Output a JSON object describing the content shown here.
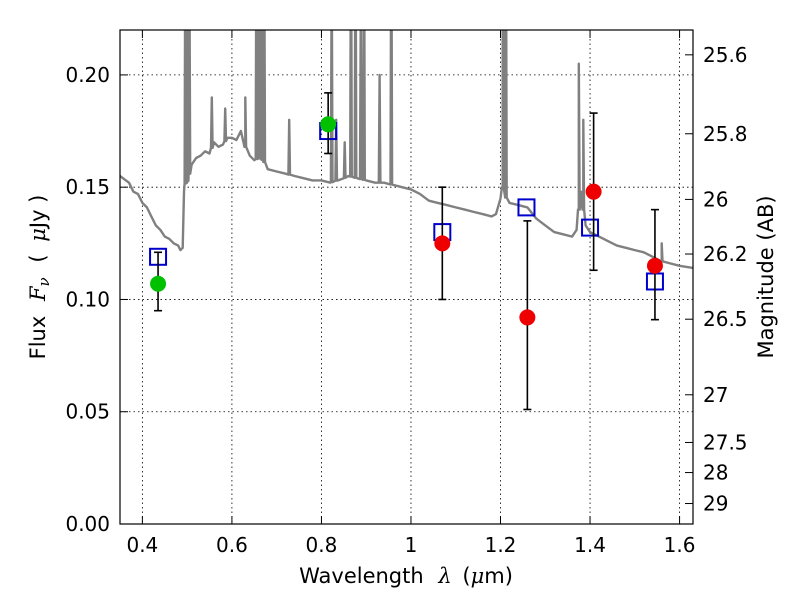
{
  "chart_data": {
    "type": "scatter",
    "xlabel_prefix": "Wavelength",
    "xlabel_symbol": "λ",
    "xlabel_unit_open": "(",
    "xlabel_unit_mu": "μ",
    "xlabel_unit_rest": "m)",
    "ylabel_prefix": "Flux",
    "ylabel_symbol": "F",
    "ylabel_sub": "ν",
    "ylabel_unit_open": "(",
    "ylabel_unit_mu": "μ",
    "ylabel_unit_rest": "Jy )",
    "y2label": "Magnitude (AB)",
    "xlim": [
      0.35,
      1.63
    ],
    "ylim": [
      0.0,
      0.22
    ],
    "grid": true,
    "x_ticks": [
      0.4,
      0.6,
      0.8,
      1.0,
      1.2,
      1.4,
      1.6
    ],
    "x_tick_labels": [
      "0.4",
      "0.6",
      "0.8",
      "1",
      "1.2",
      "1.4",
      "1.6"
    ],
    "y_ticks": [
      0.0,
      0.05,
      0.1,
      0.15,
      0.2
    ],
    "y_tick_labels": [
      "0.00",
      "0.05",
      "0.10",
      "0.15",
      "0.20"
    ],
    "y2_ticks": [
      {
        "mag": 25.6,
        "label": "25.6"
      },
      {
        "mag": 25.8,
        "label": "25.8"
      },
      {
        "mag": 26.0,
        "label": "26"
      },
      {
        "mag": 26.2,
        "label": "26.2"
      },
      {
        "mag": 26.5,
        "label": "26.5"
      },
      {
        "mag": 27.0,
        "label": "27"
      },
      {
        "mag": 27.5,
        "label": "27.5"
      },
      {
        "mag": 28.0,
        "label": "28"
      },
      {
        "mag": 29.0,
        "label": "29"
      }
    ],
    "template_spectrum": {
      "color": "#808080",
      "points": [
        [
          0.35,
          0.155
        ],
        [
          0.37,
          0.152
        ],
        [
          0.38,
          0.148
        ],
        [
          0.39,
          0.147
        ],
        [
          0.4,
          0.143
        ],
        [
          0.41,
          0.141
        ],
        [
          0.42,
          0.137
        ],
        [
          0.43,
          0.133
        ],
        [
          0.44,
          0.131
        ],
        [
          0.45,
          0.128
        ],
        [
          0.46,
          0.127
        ],
        [
          0.47,
          0.125
        ],
        [
          0.48,
          0.124
        ],
        [
          0.485,
          0.122
        ],
        [
          0.49,
          0.123
        ],
        [
          0.493,
          0.148
        ],
        [
          0.497,
          0.153
        ],
        [
          0.5,
          0.152
        ],
        [
          0.51,
          0.16
        ],
        [
          0.52,
          0.163
        ],
        [
          0.53,
          0.164
        ],
        [
          0.54,
          0.166
        ],
        [
          0.55,
          0.165
        ],
        [
          0.56,
          0.17
        ],
        [
          0.57,
          0.168
        ],
        [
          0.58,
          0.169
        ],
        [
          0.59,
          0.172
        ],
        [
          0.6,
          0.172
        ],
        [
          0.61,
          0.171
        ],
        [
          0.62,
          0.175
        ],
        [
          0.63,
          0.168
        ],
        [
          0.64,
          0.164
        ],
        [
          0.65,
          0.162
        ],
        [
          0.66,
          0.163
        ],
        [
          0.67,
          0.162
        ],
        [
          0.68,
          0.158
        ],
        [
          0.7,
          0.157
        ],
        [
          0.72,
          0.156
        ],
        [
          0.74,
          0.155
        ],
        [
          0.76,
          0.154
        ],
        [
          0.78,
          0.153
        ],
        [
          0.8,
          0.153
        ],
        [
          0.82,
          0.152
        ],
        [
          0.85,
          0.154
        ],
        [
          0.86,
          0.155
        ],
        [
          0.88,
          0.154
        ],
        [
          0.9,
          0.153
        ],
        [
          0.92,
          0.152
        ],
        [
          0.94,
          0.152
        ],
        [
          0.96,
          0.151
        ],
        [
          0.98,
          0.15
        ],
        [
          1.0,
          0.149
        ],
        [
          1.02,
          0.147
        ],
        [
          1.04,
          0.144
        ],
        [
          1.06,
          0.143
        ],
        [
          1.08,
          0.142
        ],
        [
          1.1,
          0.141
        ],
        [
          1.12,
          0.14
        ],
        [
          1.14,
          0.139
        ],
        [
          1.16,
          0.138
        ],
        [
          1.18,
          0.137
        ],
        [
          1.19,
          0.138
        ],
        [
          1.2,
          0.145
        ],
        [
          1.205,
          0.15
        ],
        [
          1.21,
          0.146
        ],
        [
          1.22,
          0.143
        ],
        [
          1.24,
          0.142
        ],
        [
          1.26,
          0.141
        ],
        [
          1.28,
          0.136
        ],
        [
          1.3,
          0.133
        ],
        [
          1.32,
          0.13
        ],
        [
          1.34,
          0.129
        ],
        [
          1.36,
          0.128
        ],
        [
          1.37,
          0.131
        ],
        [
          1.375,
          0.14
        ],
        [
          1.38,
          0.148
        ],
        [
          1.385,
          0.14
        ],
        [
          1.39,
          0.133
        ],
        [
          1.4,
          0.13
        ],
        [
          1.42,
          0.128
        ],
        [
          1.44,
          0.126
        ],
        [
          1.46,
          0.124
        ],
        [
          1.48,
          0.123
        ],
        [
          1.5,
          0.122
        ],
        [
          1.52,
          0.121
        ],
        [
          1.54,
          0.119
        ],
        [
          1.56,
          0.117
        ],
        [
          1.58,
          0.116
        ],
        [
          1.6,
          0.115
        ],
        [
          1.63,
          0.114
        ]
      ],
      "emission_lines": [
        {
          "x": 0.496,
          "peak": 0.28
        },
        {
          "x": 0.501,
          "peak": 0.28
        },
        {
          "x": 0.505,
          "peak": 0.25
        },
        {
          "x": 0.555,
          "peak": 0.19
        },
        {
          "x": 0.585,
          "peak": 0.185
        },
        {
          "x": 0.63,
          "peak": 0.19
        },
        {
          "x": 0.655,
          "peak": 0.28
        },
        {
          "x": 0.662,
          "peak": 0.28
        },
        {
          "x": 0.668,
          "peak": 0.28
        },
        {
          "x": 0.672,
          "peak": 0.28
        },
        {
          "x": 0.728,
          "peak": 0.18
        },
        {
          "x": 0.823,
          "peak": 0.25
        },
        {
          "x": 0.833,
          "peak": 0.18
        },
        {
          "x": 0.852,
          "peak": 0.17
        },
        {
          "x": 0.866,
          "peak": 0.28
        },
        {
          "x": 0.876,
          "peak": 0.28
        },
        {
          "x": 0.888,
          "peak": 0.23
        },
        {
          "x": 0.895,
          "peak": 0.28
        },
        {
          "x": 0.93,
          "peak": 0.2
        },
        {
          "x": 0.956,
          "peak": 0.28
        },
        {
          "x": 1.205,
          "peak": 0.28
        },
        {
          "x": 1.212,
          "peak": 0.28
        },
        {
          "x": 1.375,
          "peak": 0.205
        },
        {
          "x": 1.385,
          "peak": 0.18
        },
        {
          "x": 1.56,
          "peak": 0.125
        }
      ]
    },
    "series": [
      {
        "marker": "open-square",
        "color": "#0000cc",
        "points": [
          {
            "x": 0.435,
            "y": 0.119
          },
          {
            "x": 0.815,
            "y": 0.175
          },
          {
            "x": 1.07,
            "y": 0.13
          },
          {
            "x": 1.258,
            "y": 0.141
          },
          {
            "x": 1.4,
            "y": 0.132
          },
          {
            "x": 1.545,
            "y": 0.108
          }
        ]
      },
      {
        "marker": "filled-circle",
        "color": "#00c000",
        "points": [
          {
            "x": 0.435,
            "y": 0.107,
            "yerr_low": 0.095,
            "yerr_high": 0.121
          },
          {
            "x": 0.815,
            "y": 0.178,
            "yerr_low": 0.165,
            "yerr_high": 0.192
          }
        ]
      },
      {
        "marker": "filled-circle",
        "color": "#ee0000",
        "points": [
          {
            "x": 1.07,
            "y": 0.125,
            "yerr_low": 0.1,
            "yerr_high": 0.15
          },
          {
            "x": 1.26,
            "y": 0.092,
            "yerr_low": 0.051,
            "yerr_high": 0.135
          },
          {
            "x": 1.408,
            "y": 0.148,
            "yerr_low": 0.113,
            "yerr_high": 0.183
          },
          {
            "x": 1.545,
            "y": 0.115,
            "yerr_low": 0.091,
            "yerr_high": 0.14
          }
        ]
      }
    ]
  }
}
